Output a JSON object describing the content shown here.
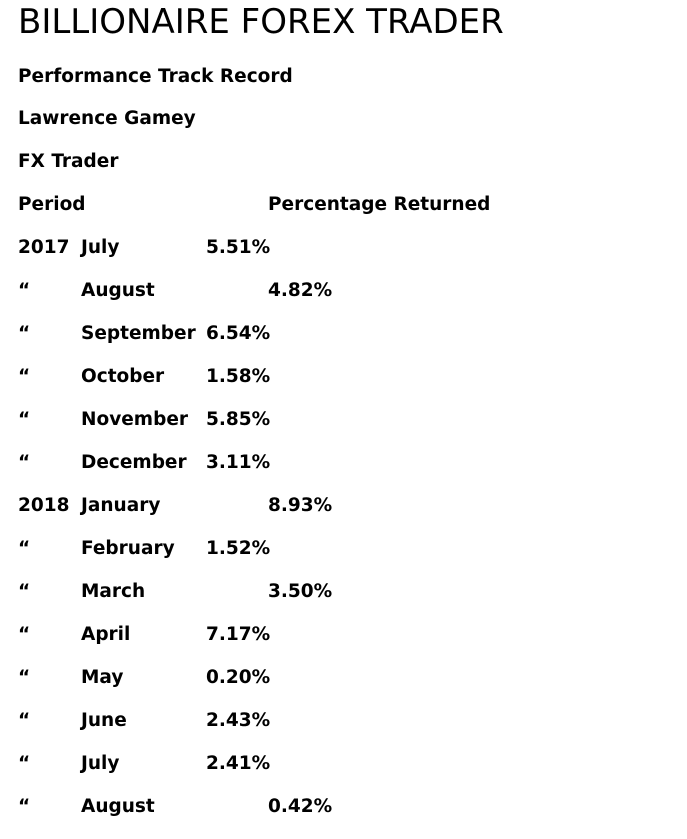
{
  "title": "BILLIONAIRE FOREX TRADER",
  "subtitle": "Performance Track Record",
  "trader_name": "Lawrence Gamey",
  "trader_role": "FX Trader",
  "table": {
    "header_period": "Period",
    "header_percentage": "Percentage Returned",
    "rows": [
      {
        "year": "2017",
        "month": "July",
        "pct": "5.51%",
        "align": "near"
      },
      {
        "year": "“",
        "month": "August",
        "pct": "4.82%",
        "align": "far"
      },
      {
        "year": "“",
        "month": "September",
        "pct": "6.54%",
        "align": "near"
      },
      {
        "year": "“",
        "month": "October",
        "pct": "1.58%",
        "align": "near"
      },
      {
        "year": "“",
        "month": "November",
        "pct": "5.85%",
        "align": "near"
      },
      {
        "year": "“",
        "month": "December",
        "pct": "3.11%",
        "align": "near"
      },
      {
        "year": "2018",
        "month": "January",
        "pct": "8.93%",
        "align": "far"
      },
      {
        "year": "“",
        "month": "February",
        "pct": "1.52%",
        "align": "near"
      },
      {
        "year": "“",
        "month": "March",
        "pct": "3.50%",
        "align": "far"
      },
      {
        "year": "“",
        "month": "April",
        "pct": "7.17%",
        "align": "near"
      },
      {
        "year": "“",
        "month": "May",
        "pct": "0.20%",
        "align": "near"
      },
      {
        "year": "“",
        "month": "June",
        "pct": "2.43%",
        "align": "near"
      },
      {
        "year": "“",
        "month": "July",
        "pct": "2.41%",
        "align": "near"
      },
      {
        "year": "“",
        "month": "August",
        "pct": "0.42%",
        "align": "far"
      }
    ]
  }
}
